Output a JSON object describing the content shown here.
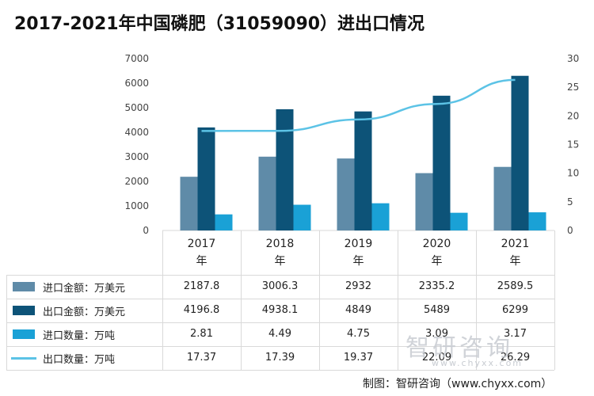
{
  "title": "2017-2021年中国磷肥（31059090）进出口情况",
  "source": "制图：智研咨询（www.chyxx.com）",
  "watermark": {
    "brand": "智研咨询",
    "url": "www.chyxx.com"
  },
  "chart_data": {
    "type": "bar",
    "title": "2017-2021年中国磷肥（31059090）进出口情况",
    "categories": [
      "2017年",
      "2018年",
      "2019年",
      "2020年",
      "2021年"
    ],
    "y_left": {
      "ticks": [
        "0",
        "1000",
        "2000",
        "3000",
        "4000",
        "5000",
        "6000",
        "7000"
      ],
      "min": 0,
      "max": 7000
    },
    "y_right": {
      "ticks": [
        "0",
        "5",
        "10",
        "15",
        "20",
        "25",
        "30"
      ],
      "min": 0,
      "max": 30
    },
    "series": [
      {
        "name": "进口金额：万美元",
        "kind": "bar",
        "axis": "left",
        "color": "#5f8ba8",
        "values": [
          2187.8,
          3006.3,
          2932,
          2335.2,
          2589.5
        ],
        "labels": [
          "2187.8",
          "3006.3",
          "2932",
          "2335.2",
          "2589.5"
        ]
      },
      {
        "name": "出口金额：万美元",
        "kind": "bar",
        "axis": "left",
        "color": "#0d5378",
        "values": [
          4196.8,
          4938.1,
          4849,
          5489,
          6299
        ],
        "labels": [
          "4196.8",
          "4938.1",
          "4849",
          "5489",
          "6299"
        ]
      },
      {
        "name": "进口数量：万吨",
        "kind": "bar",
        "axis": "right",
        "color": "#1aa1d6",
        "values": [
          2.81,
          4.49,
          4.75,
          3.09,
          3.17
        ],
        "labels": [
          "2.81",
          "4.49",
          "4.75",
          "3.09",
          "3.17"
        ]
      },
      {
        "name": "出口数量：万吨",
        "kind": "line",
        "axis": "right",
        "color": "#5cc3e6",
        "values": [
          17.37,
          17.39,
          19.37,
          22.09,
          26.29
        ],
        "labels": [
          "17.37",
          "17.39",
          "19.37",
          "22.09",
          "26.29"
        ]
      }
    ]
  }
}
